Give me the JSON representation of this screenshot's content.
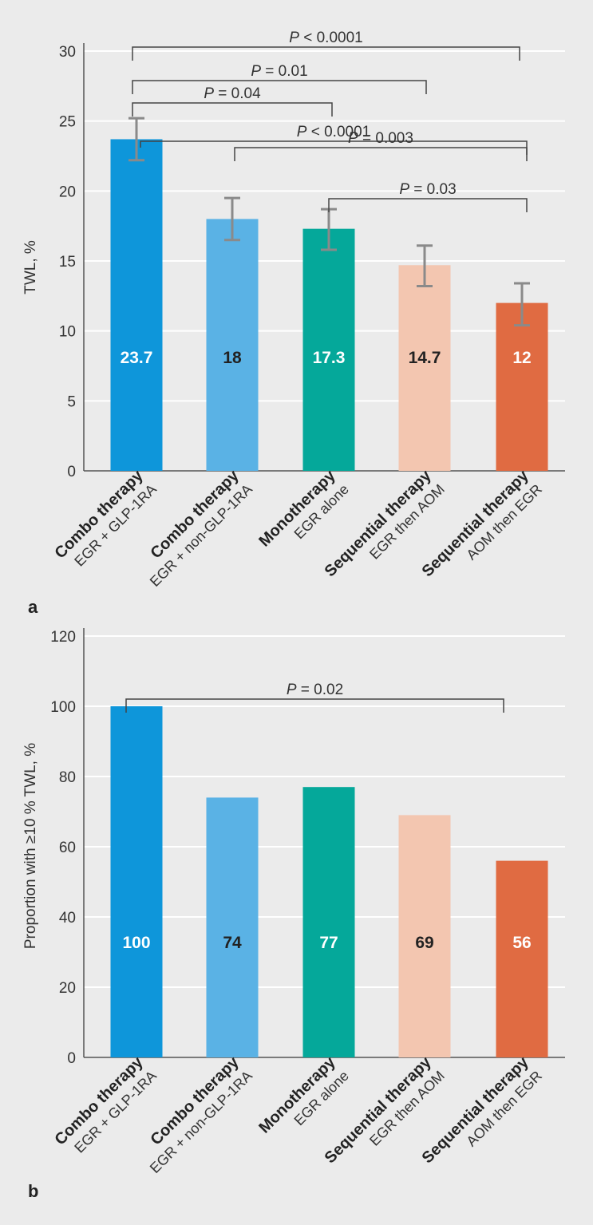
{
  "chart_data": [
    {
      "panel_label": "a",
      "type": "bar",
      "ylabel": "TWL, %",
      "ylim": [
        0,
        30
      ],
      "yticks": [
        0,
        5,
        10,
        15,
        20,
        25,
        30
      ],
      "grid": true,
      "categories": [
        {
          "bold": "Combo therapy",
          "sub": "EGR + GLP-1RA"
        },
        {
          "bold": "Combo therapy",
          "sub": "EGR + non-GLP-1RA"
        },
        {
          "bold": "Monotherapy",
          "sub": "EGR alone"
        },
        {
          "bold": "Sequential therapy",
          "sub": "EGR then AOM"
        },
        {
          "bold": "Sequential therapy",
          "sub": "AOM then EGR"
        }
      ],
      "values": [
        23.7,
        18,
        17.3,
        14.7,
        12
      ],
      "data_labels": [
        "23.7",
        "18",
        "17.3",
        "14.7",
        "12"
      ],
      "error_low": [
        22.2,
        16.5,
        15.8,
        13.2,
        10.4
      ],
      "error_high": [
        25.2,
        19.5,
        18.7,
        16.1,
        13.4
      ],
      "colors": [
        "#0e96da",
        "#5ab2e5",
        "#05a89a",
        "#f3c6b0",
        "#e06b42"
      ],
      "label_colors": [
        "#ffffff",
        "#222222",
        "#ffffff",
        "#222222",
        "#ffffff"
      ],
      "significance": [
        {
          "from": 0,
          "to": 4,
          "p_symbol": "P",
          "p_text": " < 0.0001"
        },
        {
          "from": 0,
          "to": 3,
          "p_symbol": "P",
          "p_text": " = 0.01"
        },
        {
          "from": 0,
          "to": 2,
          "p_symbol": "P",
          "p_text": " = 0.04"
        },
        {
          "from": 0,
          "to": 4,
          "p_symbol": "P",
          "p_text": " < 0.0001"
        },
        {
          "from": 1,
          "to": 4,
          "p_symbol": "P",
          "p_text": " = 0.003"
        },
        {
          "from": 2,
          "to": 4,
          "p_symbol": "P",
          "p_text": " = 0.03"
        }
      ]
    },
    {
      "panel_label": "b",
      "type": "bar",
      "ylabel": "Proportion with ≥10 % TWL, %",
      "ylim": [
        0,
        120
      ],
      "yticks": [
        0,
        20,
        40,
        60,
        80,
        100,
        120
      ],
      "grid": true,
      "categories": [
        {
          "bold": "Combo therapy",
          "sub": "EGR + GLP-1RA"
        },
        {
          "bold": "Combo therapy",
          "sub": "EGR + non-GLP-1RA"
        },
        {
          "bold": "Monotherapy",
          "sub": "EGR alone"
        },
        {
          "bold": "Sequential therapy",
          "sub": "EGR then AOM"
        },
        {
          "bold": "Sequential therapy",
          "sub": "AOM then EGR"
        }
      ],
      "values": [
        100,
        74,
        77,
        69,
        56
      ],
      "data_labels": [
        "100",
        "74",
        "77",
        "69",
        "56"
      ],
      "colors": [
        "#0e96da",
        "#5ab2e5",
        "#05a89a",
        "#f3c6b0",
        "#e06b42"
      ],
      "label_colors": [
        "#ffffff",
        "#222222",
        "#ffffff",
        "#222222",
        "#ffffff"
      ],
      "significance": [
        {
          "from": 0,
          "to": 4,
          "p_symbol": "P",
          "p_text": " = 0.02"
        }
      ]
    }
  ]
}
